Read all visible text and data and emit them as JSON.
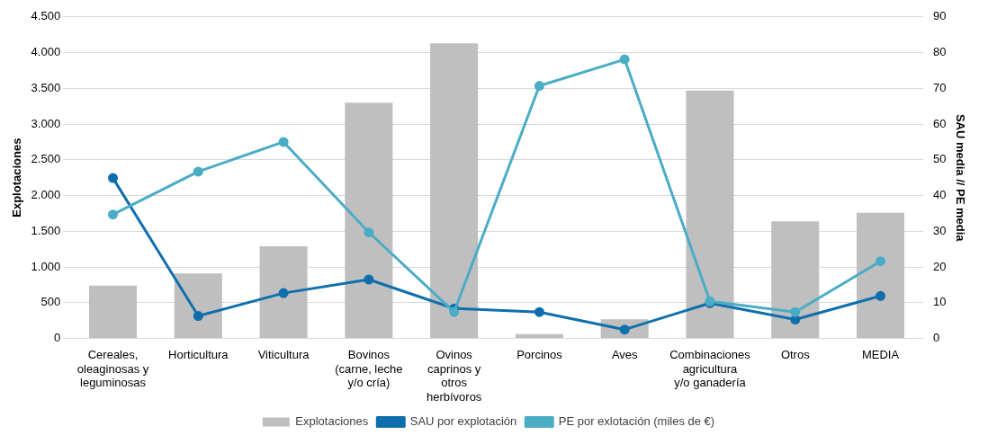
{
  "chart_data": {
    "type": "bar",
    "ylabel": "Explotaciones",
    "y2label": "SAU media // PE media",
    "categories": [
      "Cereales, oleaginosas y leguminosas",
      "Horticultura",
      "Viticultura",
      "Bovinos (carne, leche y/o cría)",
      "Ovinos caprinos y otros herbívoros",
      "Porcinos",
      "Aves",
      "Combinaciones agricultura y/o ganadería",
      "Otros",
      "MEDIA"
    ],
    "series": [
      {
        "name": "Explotaciones",
        "color": "#bfbfbf",
        "values": [
          740,
          910,
          1290,
          3300,
          4130,
          60,
          270,
          3470,
          1640,
          1760
        ]
      },
      {
        "name": "SAU por explotación",
        "type": "line",
        "axis": "y2",
        "color": "#0f6fad",
        "values": [
          44.9,
          6.3,
          12.7,
          16.5,
          8.4,
          7.4,
          2.5,
          9.9,
          5.3,
          11.9
        ]
      },
      {
        "name": "PE por exlotación (miles de €)",
        "type": "line",
        "axis": "y2",
        "color": "#4bacc6",
        "values": [
          34.7,
          46.7,
          55.0,
          29.7,
          7.4,
          70.7,
          78.1,
          10.4,
          7.4,
          21.6
        ]
      }
    ],
    "ylim": [
      0,
      4500
    ],
    "yticks": [
      {
        "value": 0,
        "label": "0"
      },
      {
        "value": 500,
        "label": "500"
      },
      {
        "value": 1000,
        "label": "1.000"
      },
      {
        "value": 1500,
        "label": "1.500"
      },
      {
        "value": 2000,
        "label": "2.000"
      },
      {
        "value": 2500,
        "label": "2.500"
      },
      {
        "value": 3000,
        "label": "3.000"
      },
      {
        "value": 3500,
        "label": "3.500"
      },
      {
        "value": 4000,
        "label": "4.000"
      },
      {
        "value": 4500,
        "label": "4.500"
      }
    ],
    "y2lim": [
      0,
      90
    ],
    "y2ticks": [
      0,
      10,
      20,
      30,
      40,
      50,
      60,
      70,
      80,
      90
    ],
    "grid": "y",
    "legend": "bottom",
    "marker": "circle",
    "line_style": "solid"
  }
}
